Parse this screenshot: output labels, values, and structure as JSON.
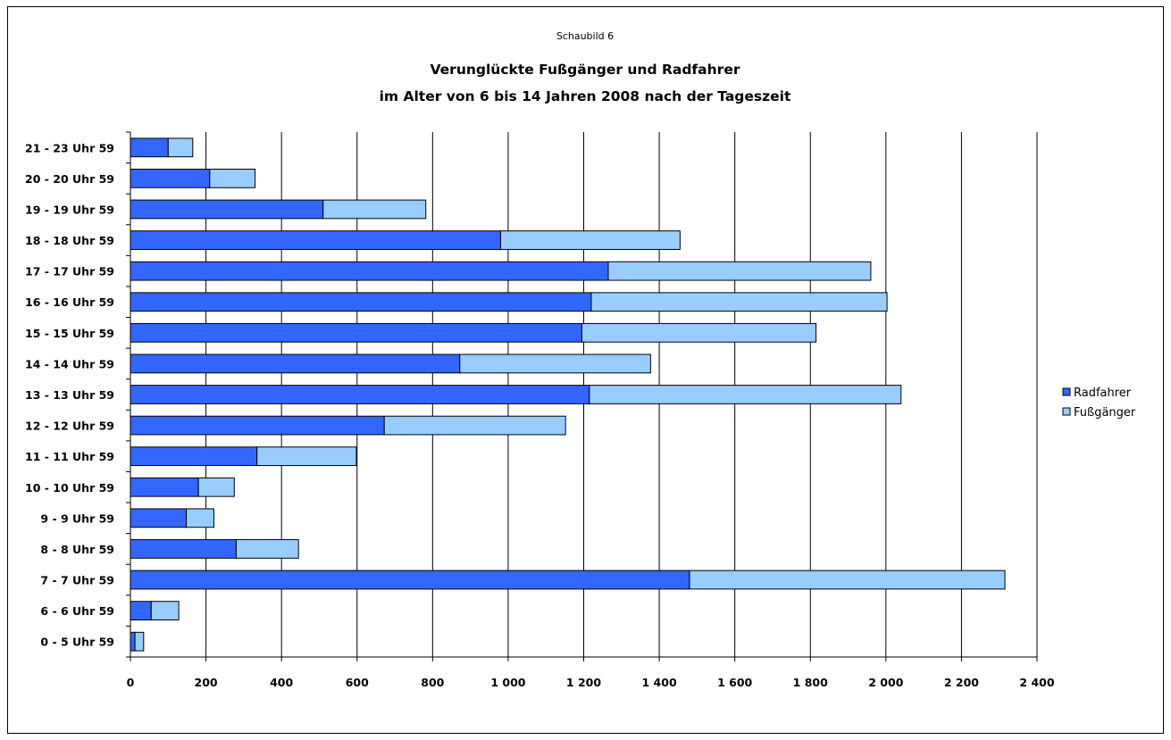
{
  "chart_data": {
    "type": "bar",
    "orientation": "horizontal",
    "stacked": true,
    "caption": "Schaubild 6",
    "title_line1": "Verunglückte Fußgänger und Radfahrer",
    "title_line2": "im Alter von 6 bis 14 Jahren 2008 nach der Tageszeit",
    "categories": [
      "0 -  5 Uhr 59",
      "6 -  6 Uhr 59",
      "7 -  7 Uhr 59",
      "8 -  8 Uhr 59",
      "9 -  9 Uhr 59",
      "10 - 10 Uhr 59",
      "11 - 11 Uhr 59",
      "12 - 12 Uhr 59",
      "13 - 13 Uhr 59",
      "14 - 14 Uhr 59",
      "15 - 15 Uhr 59",
      "16 - 16 Uhr 59",
      "17 - 17 Uhr 59",
      "18 - 18 Uhr 59",
      "19 - 19 Uhr 59",
      "20 - 20 Uhr 59",
      "21 - 23 Uhr 59"
    ],
    "series": [
      {
        "name": "Radfahrer",
        "color": "#3366ff",
        "values": [
          12,
          55,
          1480,
          280,
          148,
          180,
          335,
          672,
          1215,
          872,
          1195,
          1220,
          1265,
          980,
          510,
          210,
          100
        ]
      },
      {
        "name": "Fußgänger",
        "color": "#99ccff",
        "values": [
          23,
          73,
          835,
          165,
          73,
          95,
          263,
          480,
          825,
          505,
          620,
          783,
          695,
          475,
          272,
          120,
          65
        ]
      }
    ],
    "xlim": [
      0,
      2400
    ],
    "xticks": [
      0,
      200,
      400,
      600,
      800,
      1000,
      1200,
      1400,
      1600,
      1800,
      2000,
      2200,
      2400
    ],
    "xtick_labels": [
      "0",
      "200",
      "400",
      "600",
      "800",
      "1 000",
      "1 200",
      "1 400",
      "1 600",
      "1 800",
      "2 000",
      "2 200",
      "2 400"
    ],
    "grid": "vertical",
    "legend_position": "right"
  }
}
